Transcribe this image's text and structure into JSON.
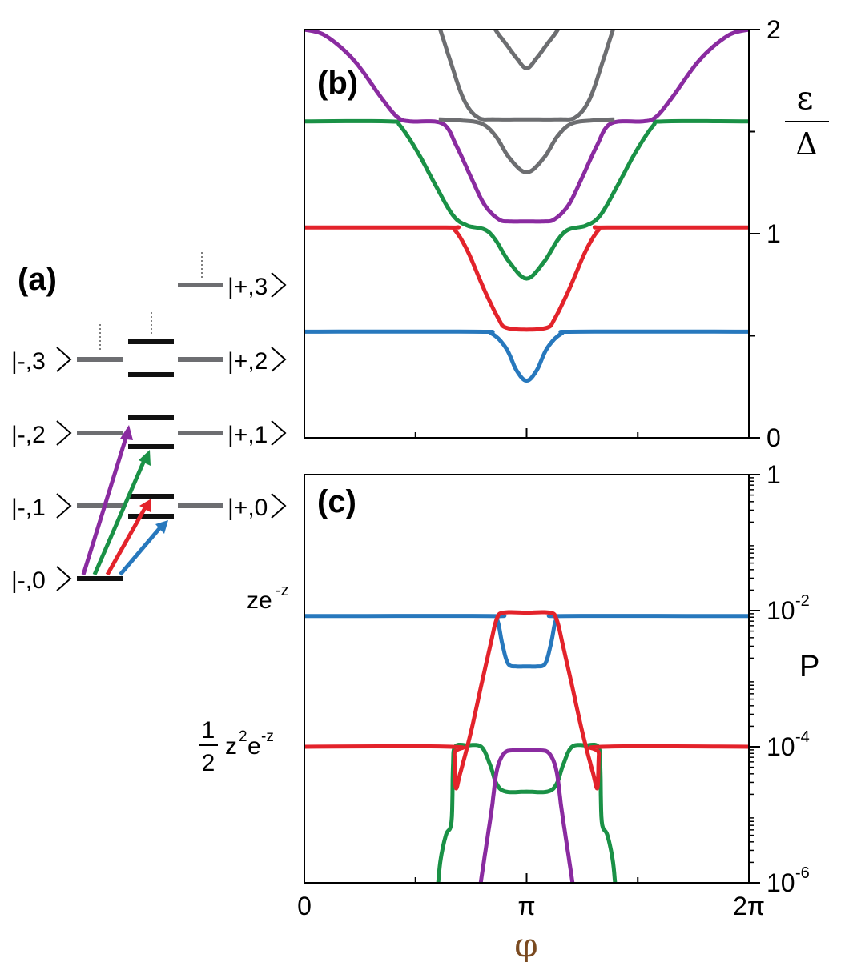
{
  "colors": {
    "blue": "#2778bd",
    "red": "#e3232b",
    "green": "#1a9146",
    "purple": "#8a2ba0",
    "gray": "#6d6e71",
    "black": "#111111",
    "phi": "#7a4a20"
  },
  "panel_a": {
    "label": "(a)",
    "kets": {
      "m0": "|-,0",
      "m1": "|-,1",
      "m2": "|-,2",
      "m3": "|-,3",
      "p0": "|+,0",
      "p1": "|+,1",
      "p2": "|+,2",
      "p3": "|+,3"
    }
  },
  "chart_data": [
    {
      "panel": "b",
      "type": "line",
      "label": "(b)",
      "ylabel_num": "ε",
      "ylabel_den": "Δ",
      "xlim": [
        0,
        6.2832
      ],
      "ylim": [
        0,
        2
      ],
      "yticks": [
        "0",
        "1",
        "2"
      ],
      "ytick_values": [
        0,
        1,
        2
      ],
      "yminor_values": [
        0.5,
        1.5
      ],
      "xtick_values": [
        0,
        3.1416,
        6.2832
      ],
      "xminor_values": [
        1.5708,
        4.7124
      ],
      "grid": false,
      "series": [
        {
          "color": "blue",
          "flat": 0.52,
          "dip": 0.28,
          "width": 0.16
        },
        {
          "color": "red",
          "flat": 1.03,
          "floor": 0.53,
          "vwidth": 1.45
        },
        {
          "color": "green",
          "flat": 1.55,
          "floor": 1.03,
          "vwidth": 2.7,
          "dip": 0.78,
          "width": 0.18
        },
        {
          "color": "purple",
          "shape": "cosine",
          "top": 2.0,
          "floor": 1.06,
          "dip": 1.3,
          "width": 0.18
        },
        {
          "color": "gray",
          "flat": 1.55,
          "floor": 1.57,
          "vwidth": 1.7,
          "dip": 1.8,
          "width": 0.16
        }
      ]
    },
    {
      "panel": "c",
      "type": "line",
      "label": "(c)",
      "ylabel": "P",
      "xlabel": "φ",
      "xlim": [
        0,
        6.2832
      ],
      "xticks": [
        "0",
        "π",
        "2π"
      ],
      "xtick_values": [
        0,
        3.1416,
        6.2832
      ],
      "xminor_values": [
        1.5708,
        4.7124
      ],
      "ylim_log10": [
        -6,
        0
      ],
      "yticks": [
        {
          "base": "1",
          "exp": "",
          "log10": 0
        },
        {
          "base": "10",
          "exp": "-2",
          "log10": -2
        },
        {
          "base": "10",
          "exp": "-4",
          "log10": -4
        },
        {
          "base": "10",
          "exp": "-6",
          "log10": -6
        }
      ],
      "yscale": "log",
      "annotations": [
        {
          "text": "ze",
          "sup": "-z",
          "log10": -2
        },
        {
          "prefix_num": "1",
          "prefix_den": "2",
          "text": "z",
          "sup1": "2",
          "text2": "e",
          "sup2": "-z",
          "log10": -4
        }
      ],
      "series": [
        {
          "color": "blue",
          "flat_log10": -2.1,
          "dip_log10": -2.8,
          "x_edges": [
            2.75,
            3.53
          ]
        },
        {
          "color": "red",
          "flat_log10": -4.0,
          "plateau_log10": -2.05,
          "x_cusps": [
            2.13,
            4.15
          ]
        },
        {
          "color": "green",
          "flat_log10": -4.0,
          "dip_log10": -4.7,
          "x_edges": [
            1.85,
            4.43
          ]
        },
        {
          "color": "purple",
          "peak_log10": -4.05,
          "x_edges": [
            2.48,
            3.81
          ]
        }
      ]
    }
  ]
}
